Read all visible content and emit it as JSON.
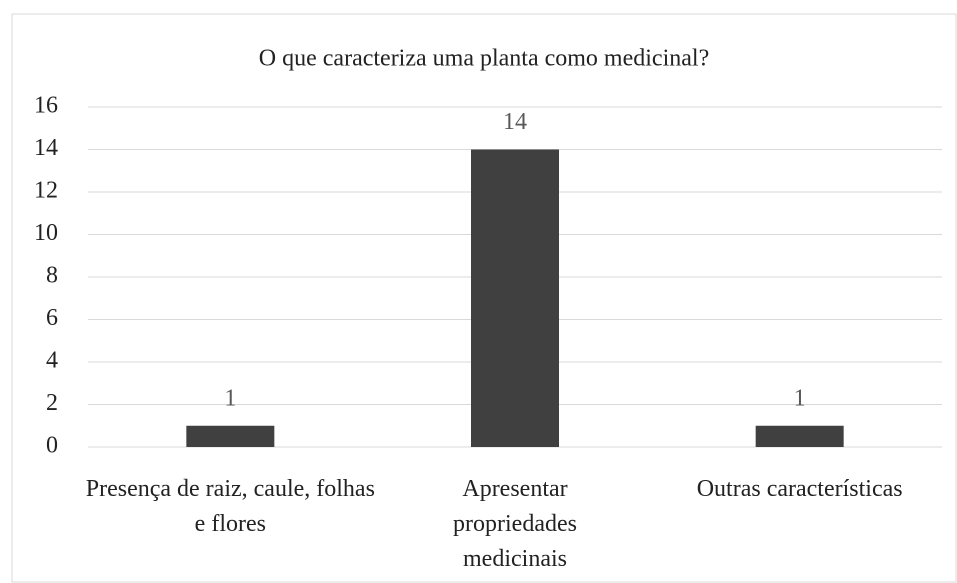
{
  "chart_data": {
    "type": "bar",
    "title": "O que caracteriza uma planta como medicinal?",
    "categories": [
      "Presença de raiz, caule, folhas e flores",
      "Apresentar propriedades medicinais",
      "Outras características"
    ],
    "values": [
      1,
      14,
      1
    ],
    "color": "#404040",
    "ylim": [
      0,
      16
    ],
    "yticks": [
      0,
      2,
      4,
      6,
      8,
      10,
      12,
      14,
      16
    ],
    "grid": true
  }
}
